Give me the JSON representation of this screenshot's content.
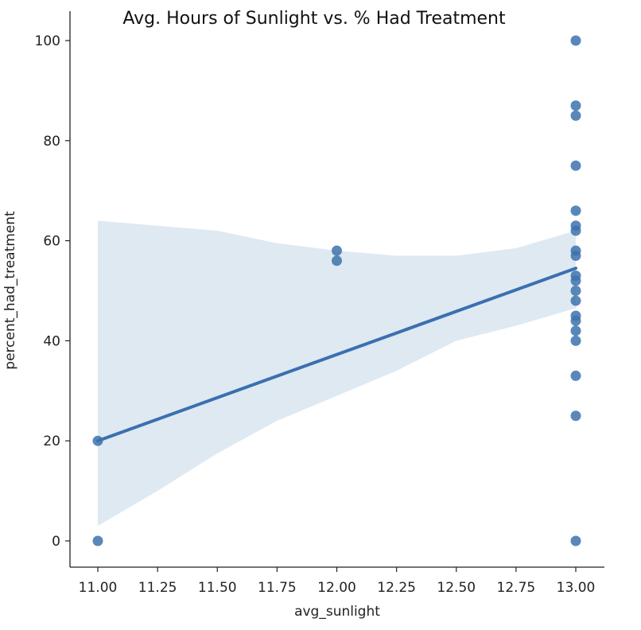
{
  "chart_data": {
    "type": "scatter",
    "title": "Avg. Hours of Sunlight vs. % Had Treatment",
    "xlabel": "avg_sunlight",
    "ylabel": "percent_had_treatment",
    "xlim": [
      10.9,
      13.1
    ],
    "ylim": [
      -5,
      104
    ],
    "xticks": [
      "11.00",
      "11.25",
      "11.50",
      "11.75",
      "12.00",
      "12.25",
      "12.50",
      "12.75",
      "13.00"
    ],
    "yticks": [
      "0",
      "20",
      "40",
      "60",
      "80",
      "100"
    ],
    "colors": {
      "points": "#3d72ad",
      "line": "#3a70b0",
      "band": "#dce7f1"
    },
    "grid": false,
    "legend": "none",
    "points": [
      {
        "x": 11,
        "y": 20
      },
      {
        "x": 11,
        "y": 0
      },
      {
        "x": 12,
        "y": 58
      },
      {
        "x": 12,
        "y": 56
      },
      {
        "x": 13,
        "y": 100
      },
      {
        "x": 13,
        "y": 87
      },
      {
        "x": 13,
        "y": 85
      },
      {
        "x": 13,
        "y": 75
      },
      {
        "x": 13,
        "y": 66
      },
      {
        "x": 13,
        "y": 63
      },
      {
        "x": 13,
        "y": 62
      },
      {
        "x": 13,
        "y": 58
      },
      {
        "x": 13,
        "y": 57
      },
      {
        "x": 13,
        "y": 53
      },
      {
        "x": 13,
        "y": 52
      },
      {
        "x": 13,
        "y": 50
      },
      {
        "x": 13,
        "y": 48
      },
      {
        "x": 13,
        "y": 45
      },
      {
        "x": 13,
        "y": 44
      },
      {
        "x": 13,
        "y": 42
      },
      {
        "x": 13,
        "y": 40
      },
      {
        "x": 13,
        "y": 33
      },
      {
        "x": 13,
        "y": 25
      },
      {
        "x": 13,
        "y": 0
      }
    ],
    "regression_line": [
      {
        "x": 11,
        "y": 20
      },
      {
        "x": 13,
        "y": 54.5
      }
    ],
    "confidence_band": {
      "upper": [
        {
          "x": 11.0,
          "y": 64
        },
        {
          "x": 11.25,
          "y": 63
        },
        {
          "x": 11.5,
          "y": 62
        },
        {
          "x": 11.75,
          "y": 59.5
        },
        {
          "x": 12.0,
          "y": 58
        },
        {
          "x": 12.25,
          "y": 57
        },
        {
          "x": 12.5,
          "y": 57
        },
        {
          "x": 12.75,
          "y": 58.5
        },
        {
          "x": 13.0,
          "y": 62
        }
      ],
      "lower": [
        {
          "x": 11.0,
          "y": 3
        },
        {
          "x": 11.25,
          "y": 10
        },
        {
          "x": 11.5,
          "y": 17.5
        },
        {
          "x": 11.75,
          "y": 24
        },
        {
          "x": 12.0,
          "y": 29
        },
        {
          "x": 12.25,
          "y": 34
        },
        {
          "x": 12.5,
          "y": 40
        },
        {
          "x": 12.75,
          "y": 43
        },
        {
          "x": 13.0,
          "y": 46.5
        }
      ]
    }
  }
}
